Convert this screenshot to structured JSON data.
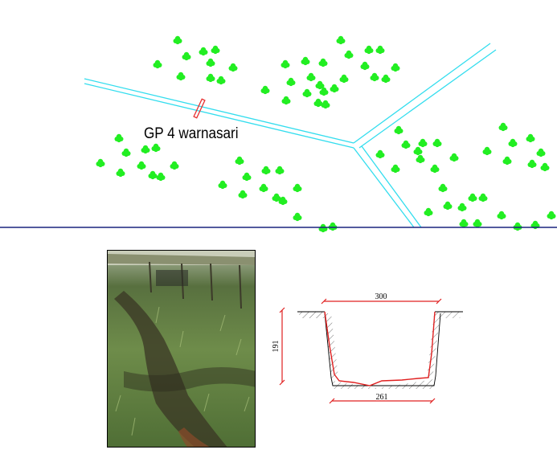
{
  "map": {
    "location_label": "GP 4 warnasari",
    "road_color": "#33ddee",
    "tree_color": "#22ee22",
    "divider_color": "#1a237e",
    "culvert_color": "#e83030",
    "tree_icon": "tree-cluster-icon"
  },
  "photo": {
    "subject": "vegetated drainage channel photo"
  },
  "cross_section": {
    "top_width_label": "300",
    "depth_label": "191",
    "bottom_width_label": "261",
    "line_color": "#e02020"
  }
}
